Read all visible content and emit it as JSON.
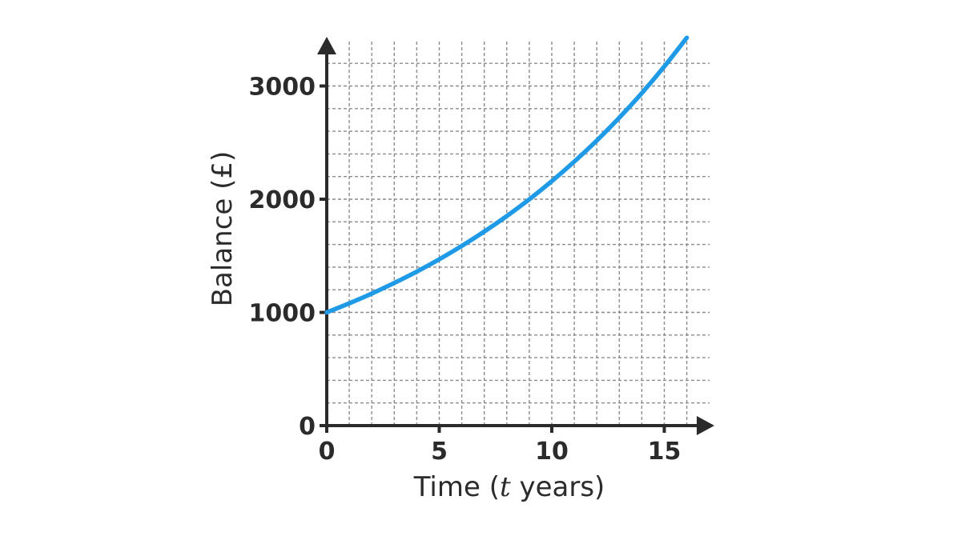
{
  "chart_data": {
    "type": "line",
    "title": "",
    "xlabel_parts": {
      "before": "Time (",
      "variable": "t",
      "after": " years)"
    },
    "ylabel": "Balance (£)",
    "xlim": [
      0,
      16
    ],
    "ylim": [
      0,
      3400
    ],
    "x_ticks": [
      0,
      5,
      10,
      15
    ],
    "y_ticks": [
      0,
      1000,
      2000,
      3000
    ],
    "x_minor_step": 1,
    "y_minor_step": 200,
    "grid": true,
    "grid_style": "dashed",
    "colors": {
      "series": "#1f9ae6",
      "axis": "#2b2b2b",
      "grid": "#8c8c8c"
    },
    "series": [
      {
        "x": [
          0,
          1,
          2,
          3,
          4,
          5,
          6,
          7,
          8,
          9,
          10,
          11,
          12,
          13,
          14,
          15,
          16
        ],
        "y": [
          1000,
          1080,
          1166,
          1260,
          1360,
          1469,
          1587,
          1714,
          1851,
          1999,
          2159,
          2332,
          2518,
          2720,
          2937,
          3172,
          3426
        ]
      }
    ]
  }
}
